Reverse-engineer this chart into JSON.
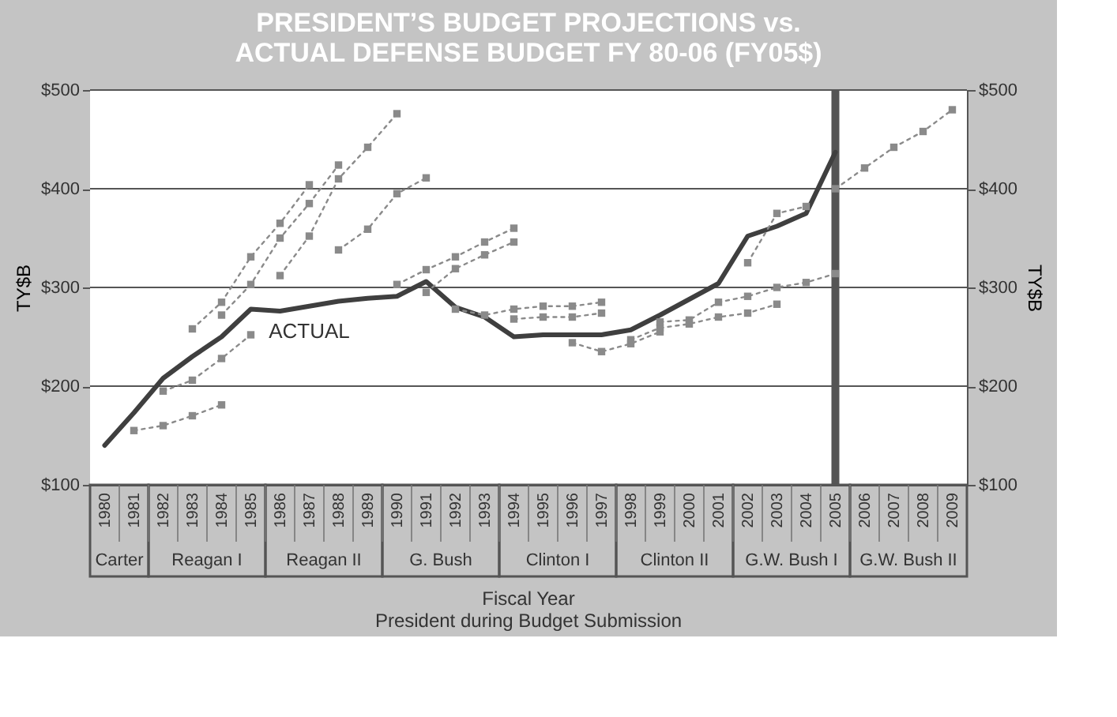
{
  "chart_data": {
    "type": "line",
    "title": "PRESIDENT’S BUDGET PROJECTIONS vs.\nACTUAL DEFENSE BUDGET FY 80-06 (FY05$)",
    "xlabel": "Fiscal Year\nPresident during Budget Submission",
    "ylabel": "TY$B",
    "y2label": "TY$B",
    "categories": [
      "1980",
      "1981",
      "1982",
      "1983",
      "1984",
      "1985",
      "1986",
      "1987",
      "1988",
      "1989",
      "1990",
      "1991",
      "1992",
      "1993",
      "1994",
      "1995",
      "1996",
      "1997",
      "1998",
      "1999",
      "2000",
      "2001",
      "2002",
      "2003",
      "2004",
      "2005",
      "2006",
      "2007",
      "2008",
      "2009"
    ],
    "series": [
      {
        "name": "ACTUAL",
        "color": "#3f3f3f",
        "line_style": "solid",
        "marker": "none",
        "values": [
          140,
          173,
          208,
          230,
          250,
          278,
          276,
          281,
          286,
          289,
          291,
          306,
          280,
          270,
          250,
          252,
          252,
          252,
          257,
          272,
          288,
          304,
          352,
          362,
          375,
          437,
          null,
          null,
          null,
          null
        ]
      },
      {
        "color": "#8a8a8a",
        "line_style": "dotted",
        "marker": "square",
        "values": [
          null,
          155,
          160,
          170,
          181,
          null,
          null,
          null,
          null,
          null,
          null,
          null,
          null,
          null,
          null,
          null,
          null,
          null,
          null,
          null,
          null,
          null,
          null,
          null,
          null,
          null,
          null,
          null,
          null,
          null
        ]
      },
      {
        "color": "#8a8a8a",
        "line_style": "dotted",
        "marker": "square",
        "values": [
          null,
          null,
          195,
          206,
          228,
          252,
          null,
          null,
          null,
          null,
          null,
          null,
          null,
          null,
          null,
          null,
          null,
          null,
          null,
          null,
          null,
          null,
          null,
          null,
          null,
          null,
          null,
          null,
          null,
          null
        ]
      },
      {
        "color": "#8a8a8a",
        "line_style": "dotted",
        "marker": "square",
        "values": [
          null,
          null,
          null,
          258,
          285,
          331,
          365,
          404,
          null,
          null,
          null,
          null,
          null,
          null,
          null,
          null,
          null,
          null,
          null,
          null,
          null,
          null,
          null,
          null,
          null,
          null,
          null,
          null,
          null,
          null
        ]
      },
      {
        "color": "#8a8a8a",
        "line_style": "dotted",
        "marker": "square",
        "values": [
          null,
          null,
          null,
          null,
          272,
          303,
          350,
          385,
          424,
          null,
          null,
          null,
          null,
          null,
          null,
          null,
          null,
          null,
          null,
          null,
          null,
          null,
          null,
          null,
          null,
          null,
          null,
          null,
          null,
          null
        ]
      },
      {
        "color": "#8a8a8a",
        "line_style": "dotted",
        "marker": "square",
        "values": [
          null,
          null,
          null,
          null,
          null,
          null,
          312,
          352,
          410,
          442,
          476,
          null,
          null,
          null,
          null,
          null,
          null,
          null,
          null,
          null,
          null,
          null,
          null,
          null,
          null,
          null,
          null,
          null,
          null,
          null
        ]
      },
      {
        "color": "#8a8a8a",
        "line_style": "dotted",
        "marker": "square",
        "values": [
          null,
          null,
          null,
          null,
          null,
          null,
          null,
          null,
          338,
          359,
          395,
          411,
          null,
          null,
          null,
          null,
          null,
          null,
          null,
          null,
          null,
          null,
          null,
          null,
          null,
          null,
          null,
          null,
          null,
          null
        ]
      },
      {
        "color": "#8a8a8a",
        "line_style": "dotted",
        "marker": "square",
        "values": [
          null,
          null,
          null,
          null,
          null,
          null,
          null,
          null,
          null,
          null,
          303,
          318,
          331,
          346,
          360,
          null,
          null,
          null,
          null,
          null,
          null,
          null,
          null,
          null,
          null,
          null,
          null,
          null,
          null,
          null
        ]
      },
      {
        "color": "#8a8a8a",
        "line_style": "dotted",
        "marker": "square",
        "values": [
          null,
          null,
          null,
          null,
          null,
          null,
          null,
          null,
          null,
          null,
          null,
          295,
          319,
          333,
          346,
          null,
          null,
          null,
          null,
          null,
          null,
          null,
          null,
          null,
          null,
          null,
          null,
          null,
          null,
          null
        ]
      },
      {
        "color": "#8a8a8a",
        "line_style": "dotted",
        "marker": "square",
        "values": [
          null,
          null,
          null,
          null,
          null,
          null,
          null,
          null,
          null,
          null,
          null,
          null,
          278,
          272,
          278,
          281,
          281,
          285,
          null,
          null,
          null,
          null,
          null,
          null,
          null,
          null,
          null,
          null,
          null,
          null
        ]
      },
      {
        "color": "#8a8a8a",
        "line_style": "dotted",
        "marker": "square",
        "values": [
          null,
          null,
          null,
          null,
          null,
          null,
          null,
          null,
          null,
          null,
          null,
          null,
          null,
          null,
          268,
          270,
          270,
          274,
          null,
          null,
          null,
          null,
          null,
          null,
          null,
          null,
          null,
          null,
          null,
          null
        ]
      },
      {
        "color": "#8a8a8a",
        "line_style": "dotted",
        "marker": "square",
        "values": [
          null,
          null,
          null,
          null,
          null,
          null,
          null,
          null,
          null,
          null,
          null,
          null,
          null,
          null,
          null,
          null,
          244,
          235,
          243,
          255,
          null,
          null,
          null,
          null,
          null,
          null,
          null,
          null,
          null,
          null
        ]
      },
      {
        "color": "#8a8a8a",
        "line_style": "dotted",
        "marker": "square",
        "values": [
          null,
          null,
          null,
          null,
          null,
          null,
          null,
          null,
          null,
          null,
          null,
          null,
          null,
          null,
          null,
          null,
          null,
          null,
          247,
          259,
          263,
          270,
          274,
          283,
          null,
          null,
          null,
          null,
          null,
          null
        ]
      },
      {
        "color": "#8a8a8a",
        "line_style": "dotted",
        "marker": "square",
        "values": [
          null,
          null,
          null,
          null,
          null,
          null,
          null,
          null,
          null,
          null,
          null,
          null,
          null,
          null,
          null,
          null,
          null,
          null,
          null,
          265,
          267,
          285,
          291,
          300,
          305,
          314,
          null,
          null,
          null,
          null
        ]
      },
      {
        "color": "#8a8a8a",
        "line_style": "dotted",
        "marker": "square",
        "values": [
          null,
          null,
          null,
          null,
          null,
          null,
          null,
          null,
          null,
          null,
          null,
          null,
          null,
          null,
          null,
          null,
          null,
          null,
          null,
          null,
          null,
          null,
          325,
          375,
          382,
          null,
          null,
          null,
          null,
          null
        ]
      },
      {
        "color": "#8a8a8a",
        "line_style": "dotted",
        "marker": "square",
        "values": [
          null,
          null,
          null,
          null,
          null,
          null,
          null,
          null,
          null,
          null,
          null,
          null,
          null,
          null,
          null,
          null,
          null,
          null,
          null,
          null,
          null,
          null,
          null,
          null,
          null,
          400,
          421,
          442,
          458,
          480
        ]
      }
    ],
    "ylim": [
      100,
      500
    ],
    "yticks": [
      {
        "value": 100,
        "label": "$100"
      },
      {
        "value": 200,
        "label": "$200"
      },
      {
        "value": 300,
        "label": "$300"
      },
      {
        "value": 400,
        "label": "$400"
      },
      {
        "value": 500,
        "label": "$500"
      }
    ],
    "y2lim": [
      100,
      500
    ],
    "y2ticks": [
      {
        "value": 100,
        "label": "$100"
      },
      {
        "value": 200,
        "label": "$200"
      },
      {
        "value": 300,
        "label": "$300"
      },
      {
        "value": 400,
        "label": "$400"
      },
      {
        "value": 500,
        "label": "$500"
      }
    ],
    "grid": "y",
    "ref_lines": [
      {
        "axis": "x",
        "value": "2005",
        "color": "#555555"
      }
    ],
    "bands": [
      {
        "axis": "x",
        "from": "1980",
        "to": "1981",
        "label": "Carter",
        "color": "#ffffff"
      },
      {
        "axis": "x",
        "from": "1982",
        "to": "1985",
        "label": "Reagan I",
        "color": "#ffffff"
      },
      {
        "axis": "x",
        "from": "1986",
        "to": "1989",
        "label": "Reagan II",
        "color": "#ffffff"
      },
      {
        "axis": "x",
        "from": "1990",
        "to": "1993",
        "label": "G. Bush",
        "color": "#ffffff"
      },
      {
        "axis": "x",
        "from": "1994",
        "to": "1997",
        "label": "Clinton I",
        "color": "#ffffff"
      },
      {
        "axis": "x",
        "from": "1998",
        "to": "2001",
        "label": "Clinton II",
        "color": "#ffffff"
      },
      {
        "axis": "x",
        "from": "2002",
        "to": "2005",
        "label": "G.W. Bush I",
        "color": "#ffffff"
      },
      {
        "axis": "x",
        "from": "2006",
        "to": "2009",
        "label": "G.W. Bush II",
        "color": "#ffffff"
      }
    ]
  }
}
